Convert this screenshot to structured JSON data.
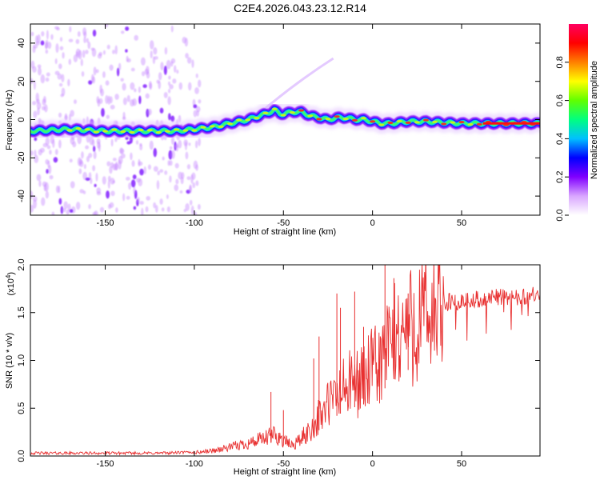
{
  "title": "C2E4.2026.043.23.12.R14",
  "chart_data": [
    {
      "type": "heatmap",
      "xlabel": "Height of straight line (km)",
      "ylabel": "Frequency (Hz)",
      "xlim": [
        -192,
        94
      ],
      "ylim": [
        -50,
        50
      ],
      "xticks": [
        -150,
        -100,
        -50,
        0,
        50
      ],
      "yticks": [
        -40,
        -20,
        0,
        20,
        40
      ],
      "colorbar": {
        "label": "Normalized spectral amplitude",
        "range": [
          0,
          1
        ],
        "ticks": [
          "0.0",
          "0.2",
          "0.4",
          "0.6",
          "0.8"
        ],
        "colors": [
          "#ffffff",
          "#d9a6ff",
          "#8000ff",
          "#0000ff",
          "#00c0ff",
          "#00ff80",
          "#60ff00",
          "#ffff00",
          "#ff8000",
          "#ff0000",
          "#ff0060"
        ]
      },
      "ridge": {
        "x": [
          -192,
          -170,
          -150,
          -130,
          -110,
          -100,
          -90,
          -80,
          -70,
          -60,
          -55,
          -52,
          -50,
          -45,
          -40,
          -35,
          -30,
          -25,
          -20,
          -15,
          -10,
          -5,
          0,
          5,
          10,
          20,
          30,
          50,
          70,
          94
        ],
        "freq": [
          -6,
          -5,
          -6,
          -6,
          -6,
          -5,
          -4,
          -2,
          0,
          3,
          5,
          3,
          3,
          4,
          4,
          2,
          1,
          0,
          1,
          1,
          0,
          0,
          -1,
          -2,
          -2,
          -1,
          -1,
          -2,
          -2,
          -2
        ]
      }
    },
    {
      "type": "line",
      "xlabel": "Height of straight line (km)",
      "ylabel": "SNR (10 * v/v)",
      "multiplier": "(x10",
      "exponent": "4",
      "multiplier_close": ")",
      "xlim": [
        -192,
        94
      ],
      "ylim": [
        0,
        2.0
      ],
      "xticks": [
        -150,
        -100,
        -50,
        0,
        50
      ],
      "yticks": [
        "0.0",
        "0.5",
        "1.0",
        "1.5",
        "2.0"
      ],
      "series_color": "#e83030",
      "envelope": {
        "x": [
          -192,
          -150,
          -120,
          -100,
          -90,
          -80,
          -70,
          -60,
          -55,
          -50,
          -45,
          -40,
          -35,
          -30,
          -25,
          -20,
          -15,
          -10,
          -5,
          0,
          5,
          10,
          15,
          20,
          25,
          30,
          40,
          50,
          60,
          70,
          80,
          94
        ],
        "base": [
          0.03,
          0.03,
          0.03,
          0.04,
          0.06,
          0.1,
          0.15,
          0.2,
          0.25,
          0.18,
          0.12,
          0.2,
          0.3,
          0.45,
          0.6,
          0.7,
          0.8,
          0.85,
          0.9,
          1.0,
          1.1,
          1.3,
          1.4,
          1.5,
          1.55,
          1.6,
          1.65,
          1.65,
          1.68,
          1.7,
          1.7,
          1.72
        ]
      },
      "peaks": {
        "x": [
          -57,
          -50,
          -33,
          -30,
          -20,
          -18,
          -10,
          -5,
          7,
          12,
          20
        ],
        "snr": [
          0.67,
          0.48,
          1.02,
          1.25,
          1.7,
          1.55,
          1.72,
          1.35,
          2.0,
          1.86,
          1.7
        ]
      }
    }
  ]
}
